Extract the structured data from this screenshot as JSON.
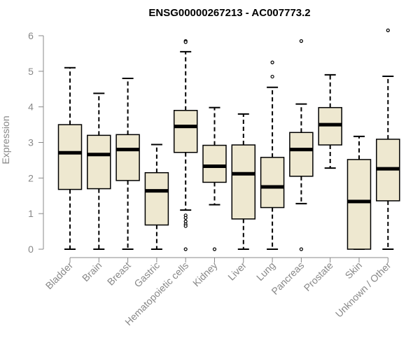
{
  "chart_data": {
    "type": "boxplot",
    "title": "ENSG00000267213 - AC007773.2",
    "xlabel": "",
    "ylabel": "Expression",
    "ylim": [
      0,
      6.1
    ],
    "yticks": [
      0,
      1,
      2,
      3,
      4,
      5,
      6
    ],
    "box_color": "#EEE8D0",
    "median_color": "#000000",
    "categories": [
      "Bladder",
      "Brain",
      "Breast",
      "Gastric",
      "Hematopoietic cells",
      "Kidney",
      "Liver",
      "Lung",
      "Pancreas",
      "Prostate",
      "Skin",
      "Unknown / Other"
    ],
    "boxes": [
      {
        "min": 0,
        "q1": 1.68,
        "median": 2.71,
        "q3": 3.5,
        "max": 5.1,
        "outliers": []
      },
      {
        "min": 0,
        "q1": 1.7,
        "median": 2.66,
        "q3": 3.2,
        "max": 4.38,
        "outliers": []
      },
      {
        "min": 0,
        "q1": 1.93,
        "median": 2.8,
        "q3": 3.22,
        "max": 4.8,
        "outliers": []
      },
      {
        "min": 0,
        "q1": 0.68,
        "median": 1.64,
        "q3": 2.15,
        "max": 2.94,
        "outliers": []
      },
      {
        "min": 1.1,
        "q1": 2.72,
        "median": 3.45,
        "q3": 3.9,
        "max": 5.55,
        "outliers": [
          5.85,
          5.82,
          0.95,
          0.88,
          0.78,
          0.7,
          0.65,
          0
        ]
      },
      {
        "min": 1.25,
        "q1": 1.88,
        "median": 2.33,
        "q3": 2.92,
        "max": 3.98,
        "outliers": [
          0
        ]
      },
      {
        "min": 0,
        "q1": 0.85,
        "median": 2.12,
        "q3": 2.93,
        "max": 3.8,
        "outliers": []
      },
      {
        "min": 0,
        "q1": 1.17,
        "median": 1.75,
        "q3": 2.58,
        "max": 4.55,
        "outliers": [
          5.25,
          4.85
        ]
      },
      {
        "min": 1.28,
        "q1": 2.05,
        "median": 2.8,
        "q3": 3.28,
        "max": 4.08,
        "outliers": [
          5.85,
          0
        ]
      },
      {
        "min": 2.28,
        "q1": 2.93,
        "median": 3.5,
        "q3": 3.98,
        "max": 4.9,
        "outliers": []
      },
      {
        "min": 0,
        "q1": 0,
        "median": 1.34,
        "q3": 2.52,
        "max": 3.17,
        "outliers": []
      },
      {
        "min": 0,
        "q1": 1.36,
        "median": 2.26,
        "q3": 3.09,
        "max": 4.86,
        "outliers": [
          6.15
        ]
      }
    ]
  }
}
